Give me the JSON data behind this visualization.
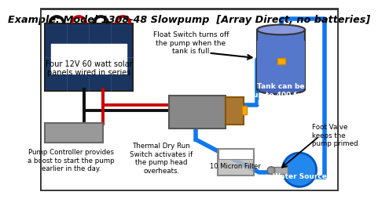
{
  "title": "Example: Model 1308-48 Slowpump  [Array Direct, no batteries]",
  "bg_color": "#ffffff",
  "labels": {
    "solar": "Four 12V 60 watt solar\npanels wired in series",
    "pump_ctrl": "Pump Controller provides\na boost to start the pump\nearlier in the day.",
    "float_switch": "Float Switch turns off\nthe pump when the\ntank is full",
    "tank": "Tank can be\nup to 400 feet\nhigher than\nthe pump",
    "foot_valve": "Foot Valve\nkeeps the\npump primed",
    "thermal": "Thermal Dry Run\nSwitch activates if\nthe pump head\noverheats.",
    "filter": "10 Micron Filter",
    "water_source": "Water Source"
  },
  "wire_red": "#cc0000",
  "wire_black": "#111111",
  "wire_blue": "#1177ee",
  "solar_panel_color": "#1a3560",
  "solar_grid_color": "#2a5090",
  "tank_body_color": "#5577cc",
  "tank_top_color": "#8899dd",
  "water_source_color": "#2288ee",
  "controller_color": "#999999",
  "controller_edge": "#666666",
  "pump_motor_color": "#888888",
  "pump_head_color": "#aa7733",
  "filter_color": "#cccccc",
  "orange_color": "#ffaa00"
}
